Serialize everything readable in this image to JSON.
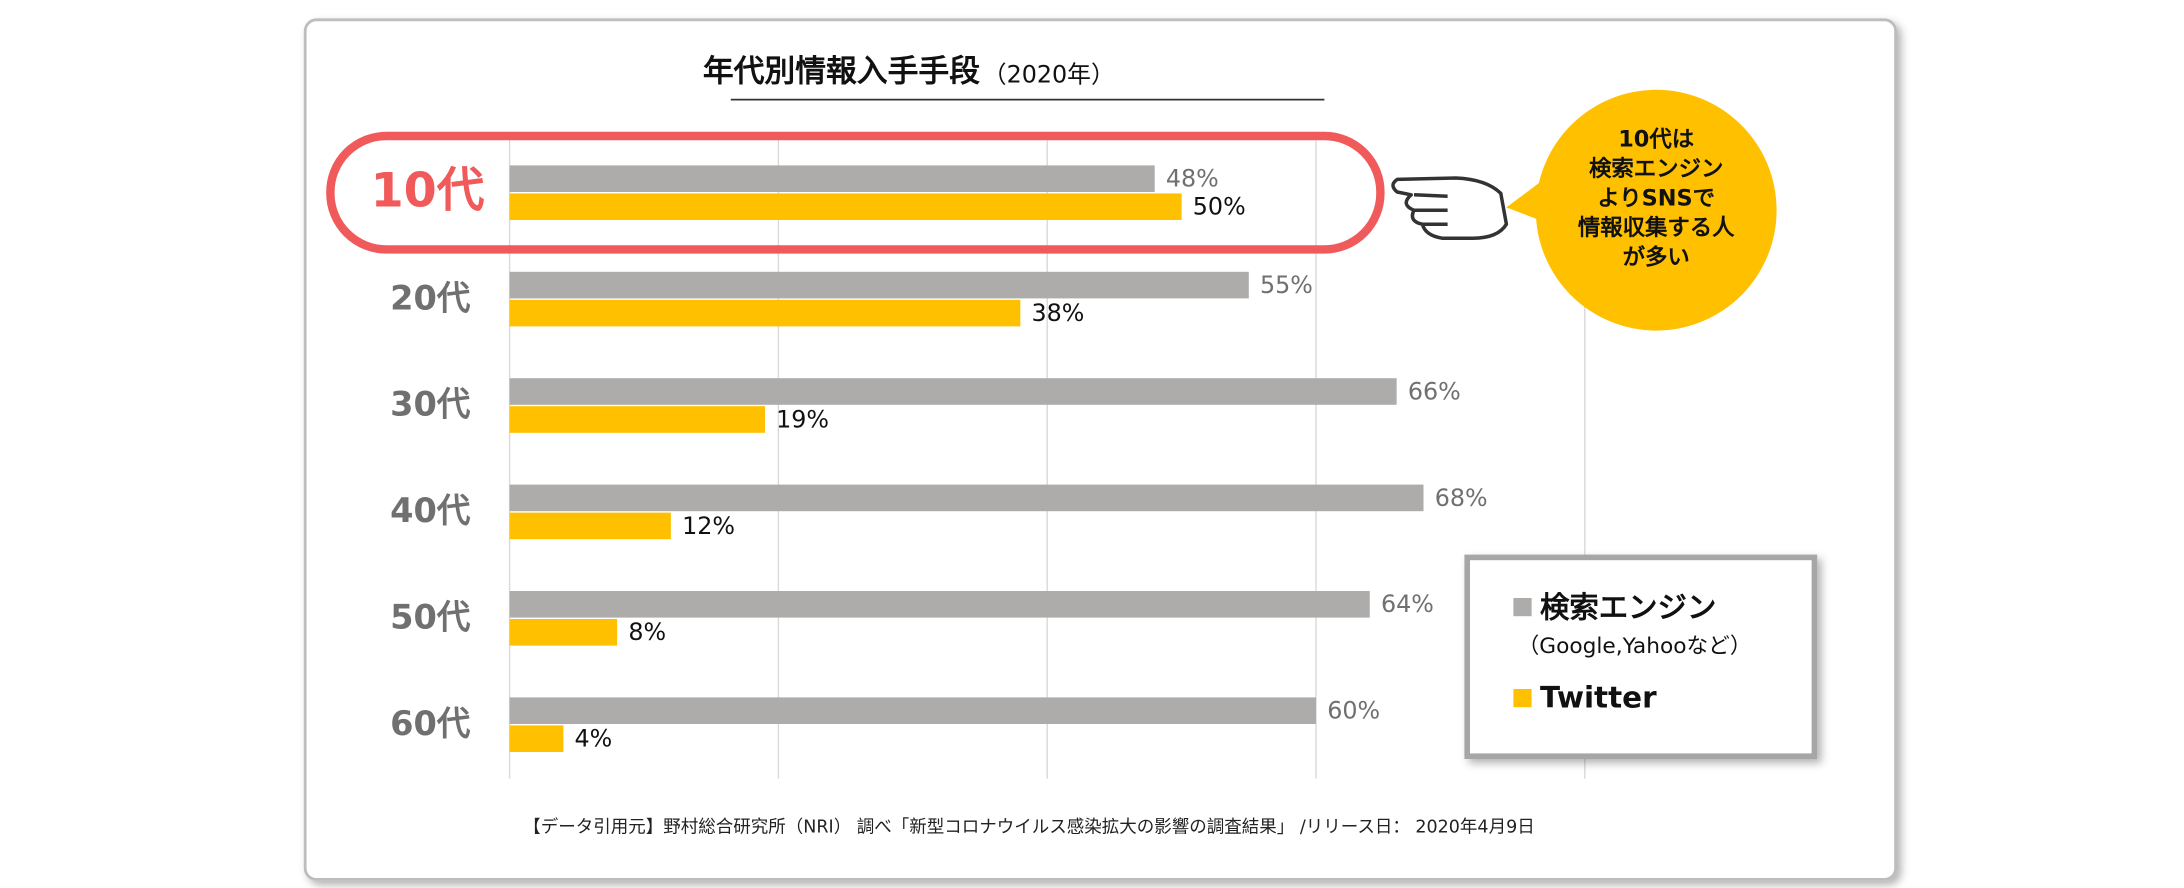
{
  "chart_data": {
    "type": "hbar",
    "title": "年代別情報入手手段",
    "subtitle": "（2020年）",
    "categories": [
      "10代",
      "20代",
      "30代",
      "40代",
      "50代",
      "60代"
    ],
    "series": [
      {
        "name": "検索エンジン",
        "note": "（Google,Yahooなど）",
        "color": "#aeabab",
        "values": [
          48,
          55,
          66,
          68,
          64,
          60
        ],
        "value_labels": [
          "48%",
          "55%",
          "66%",
          "68%",
          "64%",
          "60%"
        ]
      },
      {
        "name": "Twitter",
        "color": "#ffc000",
        "values": [
          50,
          38,
          19,
          12,
          8,
          4
        ],
        "value_labels": [
          "50%",
          "38%",
          "19%",
          "12%",
          "8%",
          "4%"
        ]
      }
    ],
    "xlim": [
      0,
      80
    ],
    "xticks": [
      0,
      20,
      40,
      60,
      80
    ],
    "grid": true,
    "highlight": 0,
    "highlight_color": "#f05a5a",
    "legend": "lower right",
    "callout": [
      "10代は",
      "検索エンジン",
      "よりSNSで",
      "情報収集する人",
      "が多い"
    ],
    "source": "【データ引用元】野村総合研究所（NRI） 調べ「新型コロナウイルス感染拡大の影響の調査結果」 /リリース日： 2020年4月9日"
  }
}
